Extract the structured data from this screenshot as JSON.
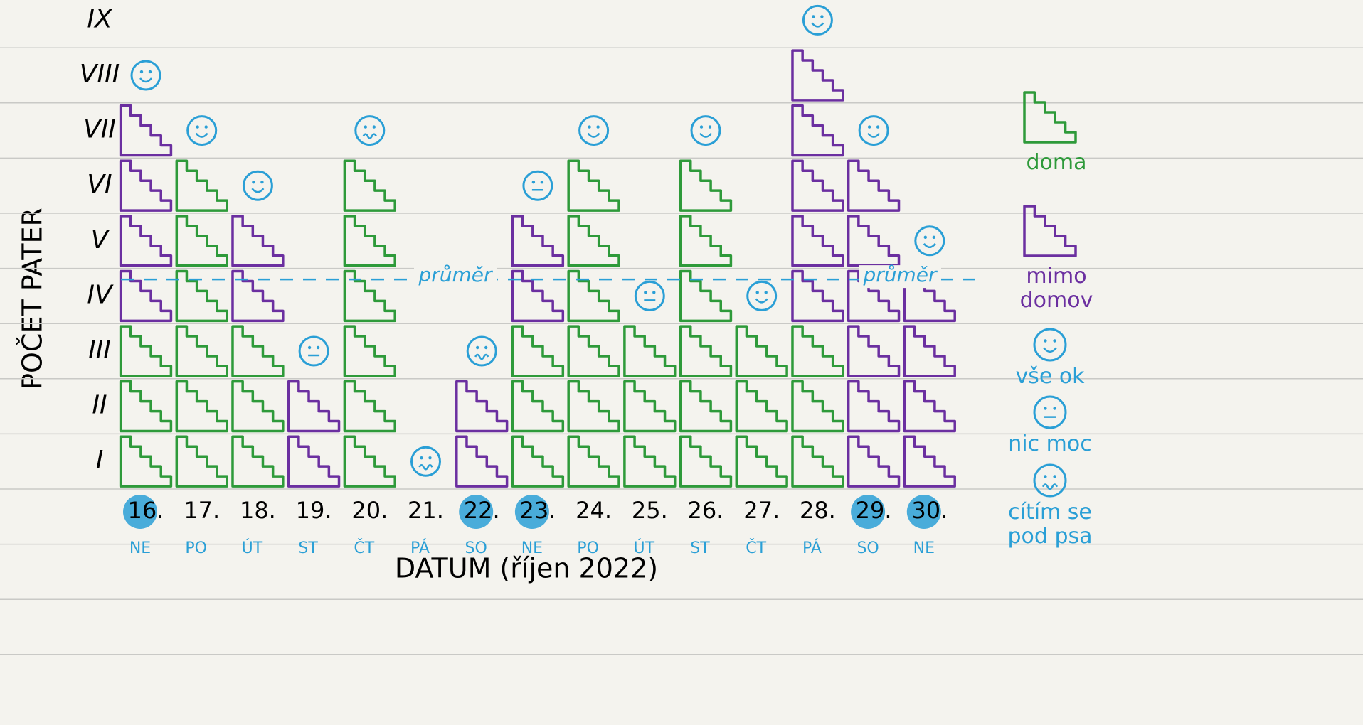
{
  "chart_data": {
    "type": "pictogram",
    "categories": [
      "16.",
      "17.",
      "18.",
      "19.",
      "20.",
      "21.",
      "22.",
      "23.",
      "24.",
      "25.",
      "26.",
      "27.",
      "28.",
      "29.",
      "30."
    ],
    "weekdays": [
      "NE",
      "PO",
      "ÚT",
      "ST",
      "ČT",
      "PÁ",
      "SO",
      "NE",
      "PO",
      "ÚT",
      "ST",
      "ČT",
      "PÁ",
      "SO",
      "NE"
    ],
    "circled": [
      true,
      false,
      false,
      false,
      false,
      false,
      true,
      true,
      false,
      false,
      false,
      false,
      false,
      true,
      true
    ],
    "series": [
      {
        "name": "doma",
        "color": "#2e9a3a",
        "values": [
          3,
          6,
          3,
          0,
          6,
          0,
          0,
          3,
          6,
          3,
          6,
          3,
          3,
          0,
          0
        ]
      },
      {
        "name": "mimo domov",
        "color": "#6b2fa0",
        "values": [
          4,
          0,
          2,
          2,
          0,
          0,
          2,
          2,
          0,
          0,
          0,
          0,
          5,
          6,
          4
        ]
      }
    ],
    "moods": [
      "vše ok",
      "vše ok",
      "vše ok",
      "nic moc",
      "cítím se pod psa",
      "cítím se pod psa",
      "cítím se pod psa",
      "nic moc",
      "vše ok",
      "nic moc",
      "vše ok",
      "vše ok",
      "vše ok",
      "vše ok",
      "vše ok"
    ],
    "mood_legend": {
      "color": "#2a9fd6",
      "labels": [
        "vše ok",
        "nic moc",
        "cítím se pod psa"
      ]
    },
    "average": {
      "value": 3.8,
      "label": "průměr"
    },
    "ylim": [
      0,
      9
    ],
    "yticks": [
      {
        "value": 1,
        "label": "I"
      },
      {
        "value": 2,
        "label": "II"
      },
      {
        "value": 3,
        "label": "III"
      },
      {
        "value": 4,
        "label": "IV"
      },
      {
        "value": 5,
        "label": "V"
      },
      {
        "value": 6,
        "label": "VI"
      },
      {
        "value": 7,
        "label": "VII"
      },
      {
        "value": 8,
        "label": "VIII"
      },
      {
        "value": 9,
        "label": "IX"
      }
    ],
    "y_label": "POČET PATER",
    "x_label": "DATUM (říjen 2022)"
  }
}
